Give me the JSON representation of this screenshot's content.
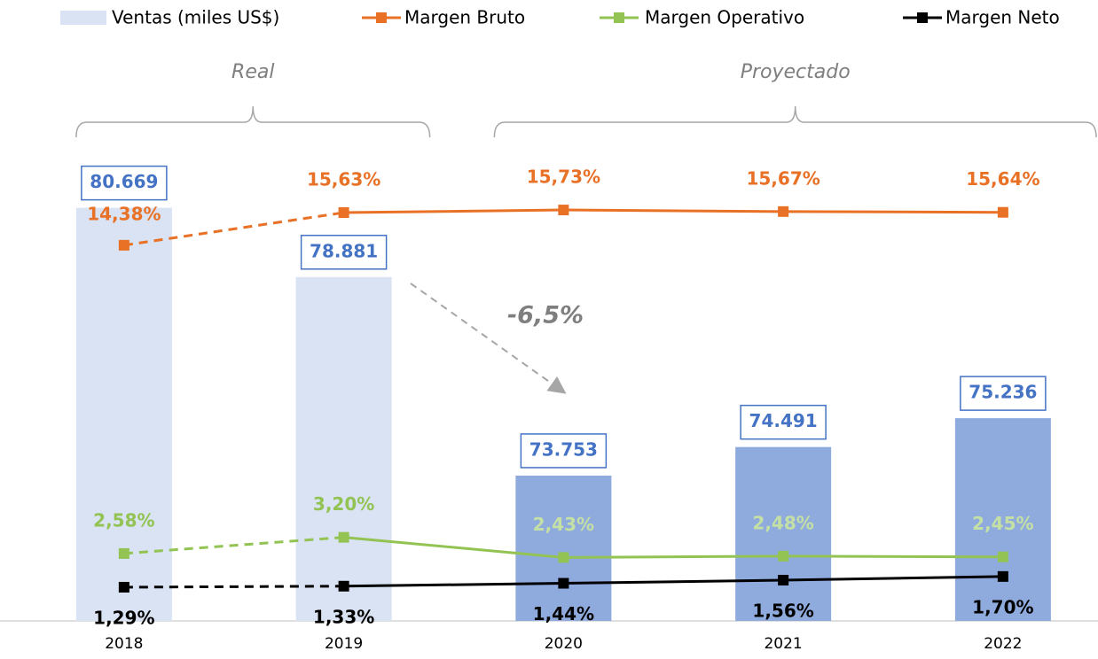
{
  "chart_data": {
    "type": "bar-line",
    "categories": [
      "2018",
      "2019",
      "2020",
      "2021",
      "2022"
    ],
    "ylim": [
      70000,
      84000
    ],
    "y2lim": [
      0,
      20.75
    ],
    "groups": [
      {
        "label": "Real",
        "categories": [
          "2018",
          "2019"
        ],
        "color": "#dae3f3"
      },
      {
        "label": "Proyectado",
        "categories": [
          "2020",
          "2021",
          "2022"
        ],
        "color": "#8faadc"
      }
    ],
    "series": [
      {
        "name": "Ventas (miles US$)",
        "kind": "bar",
        "color": "#dae3f3",
        "label_color": "#4472c4",
        "values": [
          80669,
          78881,
          73753,
          74491,
          75236
        ],
        "value_labels": [
          "80.669",
          "78.881",
          "73.753",
          "74.491",
          "75.236"
        ]
      },
      {
        "name": "Margen Bruto",
        "kind": "line",
        "axis": "y2",
        "color": "#e97126",
        "values": [
          14.38,
          15.63,
          15.73,
          15.67,
          15.64
        ],
        "value_labels": [
          "14,38%",
          "15,63%",
          "15,73%",
          "15,67%",
          "15,64%"
        ]
      },
      {
        "name": "Margen Operativo",
        "kind": "line",
        "axis": "y2",
        "color": "#92c353",
        "values": [
          2.58,
          3.2,
          2.43,
          2.48,
          2.45
        ],
        "value_labels": [
          "2,58%",
          "3,20%",
          "2,43%",
          "2,48%",
          "2,45%"
        ]
      },
      {
        "name": "Margen Neto",
        "kind": "line",
        "axis": "y2",
        "color": "#000000",
        "values": [
          1.29,
          1.33,
          1.44,
          1.56,
          1.7
        ],
        "value_labels": [
          "1,29%",
          "1,33%",
          "1,44%",
          "1,56%",
          "1,70%"
        ]
      }
    ],
    "annotations": [
      {
        "text": "-6,5%"
      }
    ]
  }
}
